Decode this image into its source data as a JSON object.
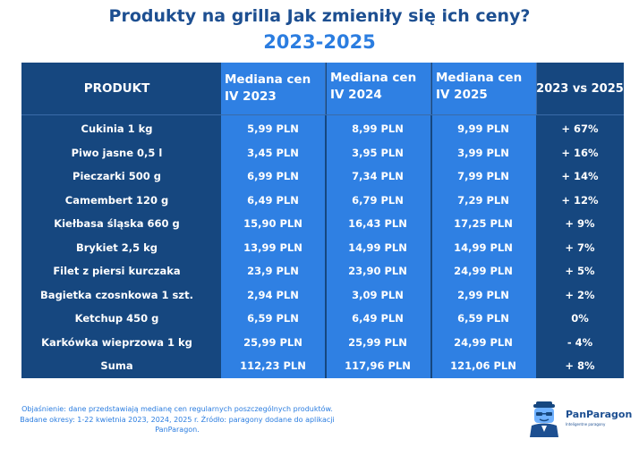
{
  "title": "Produkty na grilla Jak zmieniły się ich ceny?",
  "subtitle": "2023-2025",
  "colors": {
    "dark": "#16477f",
    "light": "#2f80e3",
    "title": "#1d4f91",
    "accent": "#2b7de0"
  },
  "chart_data": {
    "type": "table",
    "columns": [
      "PRODUKT",
      "Mediana cen IV 2023",
      "Mediana cen IV 2024",
      "Mediana cen IV 2025",
      "2023 vs 2025"
    ],
    "header": {
      "product": "PRODUKT",
      "col1_line1": "Mediana cen",
      "col1_line2": "IV 2023",
      "col2_line1": "Mediana cen",
      "col2_line2": "IV 2024",
      "col3_line1": "Mediana cen",
      "col3_line2": "IV 2025",
      "change": "2023 vs 2025"
    },
    "rows": [
      {
        "name": "Cukinia 1 kg",
        "v2023": "5,99 PLN",
        "v2024": "8,99 PLN",
        "v2025": "9,99 PLN",
        "change": "+ 67%"
      },
      {
        "name": "Piwo jasne 0,5 l",
        "v2023": "3,45 PLN",
        "v2024": "3,95 PLN",
        "v2025": "3,99 PLN",
        "change": "+ 16%"
      },
      {
        "name": "Pieczarki 500 g",
        "v2023": "6,99 PLN",
        "v2024": "7,34 PLN",
        "v2025": "7,99 PLN",
        "change": "+ 14%"
      },
      {
        "name": "Camembert 120 g",
        "v2023": "6,49 PLN",
        "v2024": "6,79 PLN",
        "v2025": "7,29 PLN",
        "change": "+ 12%"
      },
      {
        "name": "Kiełbasa śląska 660 g",
        "v2023": "15,90 PLN",
        "v2024": "16,43 PLN",
        "v2025": "17,25 PLN",
        "change": "+ 9%"
      },
      {
        "name": "Brykiet 2,5 kg",
        "v2023": "13,99 PLN",
        "v2024": "14,99 PLN",
        "v2025": "14,99 PLN",
        "change": "+ 7%"
      },
      {
        "name": "Filet z piersi kurczaka",
        "v2023": "23,9 PLN",
        "v2024": "23,90 PLN",
        "v2025": "24,99 PLN",
        "change": "+ 5%"
      },
      {
        "name": "Bagietka czosnkowa 1 szt.",
        "v2023": "2,94 PLN",
        "v2024": "3,09 PLN",
        "v2025": "2,99 PLN",
        "change": "+ 2%"
      },
      {
        "name": "Ketchup 450 g",
        "v2023": "6,59 PLN",
        "v2024": "6,49 PLN",
        "v2025": "6,59 PLN",
        "change": "0%"
      },
      {
        "name": "Karkówka wieprzowa 1 kg",
        "v2023": "25,99 PLN",
        "v2024": "25,99 PLN",
        "v2025": "24,99 PLN",
        "change": "- 4%"
      },
      {
        "name": "Suma",
        "v2023": "112,23 PLN",
        "v2024": "117,96 PLN",
        "v2025": "121,06 PLN",
        "change": "+ 8%"
      }
    ]
  },
  "footnote": "Objaśnienie: dane przedstawiają medianę cen regularnych poszczególnych produktów. Badane okresy: 1-22 kwietnia 2023, 2024, 2025 r. Źródło: paragony dodane do aplikacji PanParagon.",
  "logo": {
    "name": "PanParagon",
    "tagline": "Inteligentne paragony"
  }
}
